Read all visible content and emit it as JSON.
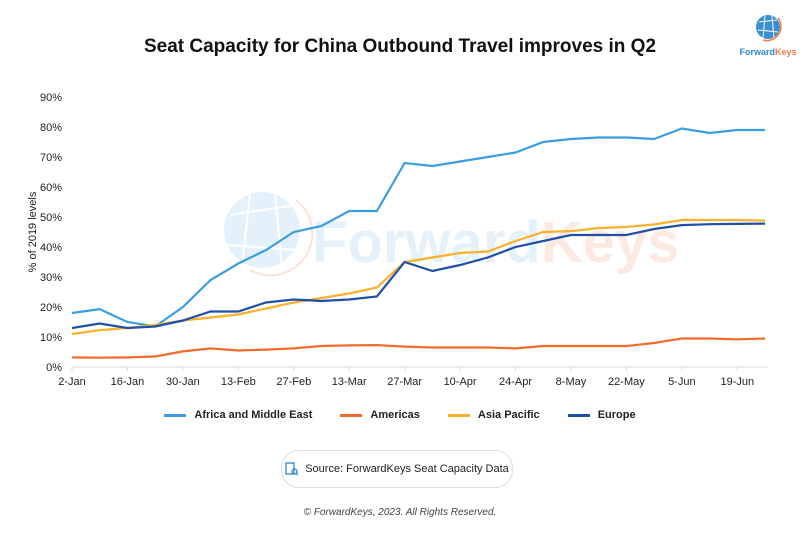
{
  "logo": {
    "brand_a": "Forward",
    "brand_b": "Keys"
  },
  "watermark": "ForwardKeys",
  "source": "Source: ForwardKeys Seat Capacity Data",
  "copyright": "© ForwardKeys, 2023. All Rights Reserved.",
  "chart_data": {
    "type": "line",
    "title": "Seat Capacity for China Outbound Travel improves in Q2",
    "ylabel": "% of 2019 levels",
    "xlabel": "",
    "ylim": [
      0,
      90
    ],
    "yticks": [
      "0%",
      "10%",
      "20%",
      "30%",
      "40%",
      "50%",
      "60%",
      "70%",
      "80%",
      "90%"
    ],
    "x": [
      "2-Jan",
      "9-Jan",
      "16-Jan",
      "23-Jan",
      "30-Jan",
      "6-Feb",
      "13-Feb",
      "20-Feb",
      "27-Feb",
      "6-Mar",
      "13-Mar",
      "20-Mar",
      "27-Mar",
      "3-Apr",
      "10-Apr",
      "17-Apr",
      "24-Apr",
      "1-May",
      "8-May",
      "15-May",
      "22-May",
      "29-May",
      "5-Jun",
      "12-Jun",
      "19-Jun",
      "26-Jun"
    ],
    "xtick_labels": [
      "2-Jan",
      "16-Jan",
      "30-Jan",
      "13-Feb",
      "27-Feb",
      "13-Mar",
      "27-Mar",
      "10-Apr",
      "24-Apr",
      "8-May",
      "22-May",
      "5-Jun",
      "19-Jun"
    ],
    "legend_position": "bottom",
    "grid": false,
    "series": [
      {
        "name": "Africa and Middle East",
        "color": "#3a9ee0",
        "values": [
          18,
          19.3,
          15,
          13.5,
          20,
          29,
          34.5,
          39,
          45,
          47,
          52,
          52,
          68,
          67,
          68.5,
          70,
          71.5,
          75,
          76,
          76.5,
          76.5,
          76,
          79.5,
          78,
          79,
          79
        ]
      },
      {
        "name": "Americas",
        "color": "#f26b2a",
        "values": [
          3.2,
          3.1,
          3.2,
          3.5,
          5.2,
          6.2,
          5.5,
          5.8,
          6.2,
          7,
          7.2,
          7.3,
          6.8,
          6.5,
          6.5,
          6.5,
          6.2,
          7,
          7,
          7,
          7,
          8,
          9.5,
          9.5,
          9.2,
          9.5
        ]
      },
      {
        "name": "Asia Pacific",
        "color": "#f9b12b",
        "values": [
          11,
          12.3,
          13,
          14,
          15.5,
          16.5,
          17.5,
          19.5,
          21.5,
          23,
          24.5,
          26.5,
          35,
          36.5,
          38,
          38.5,
          42,
          45,
          45.3,
          46.3,
          46.7,
          47.5,
          49,
          49,
          49,
          48.8
        ]
      },
      {
        "name": "Europe",
        "color": "#1f4fa8",
        "values": [
          13,
          14.5,
          13,
          13.5,
          15.5,
          18.5,
          18.5,
          21.5,
          22.5,
          22,
          22.5,
          23.5,
          35,
          32,
          34,
          36.5,
          40,
          42,
          44,
          44,
          44,
          46,
          47.3,
          47.6,
          47.7,
          47.8
        ]
      }
    ]
  }
}
